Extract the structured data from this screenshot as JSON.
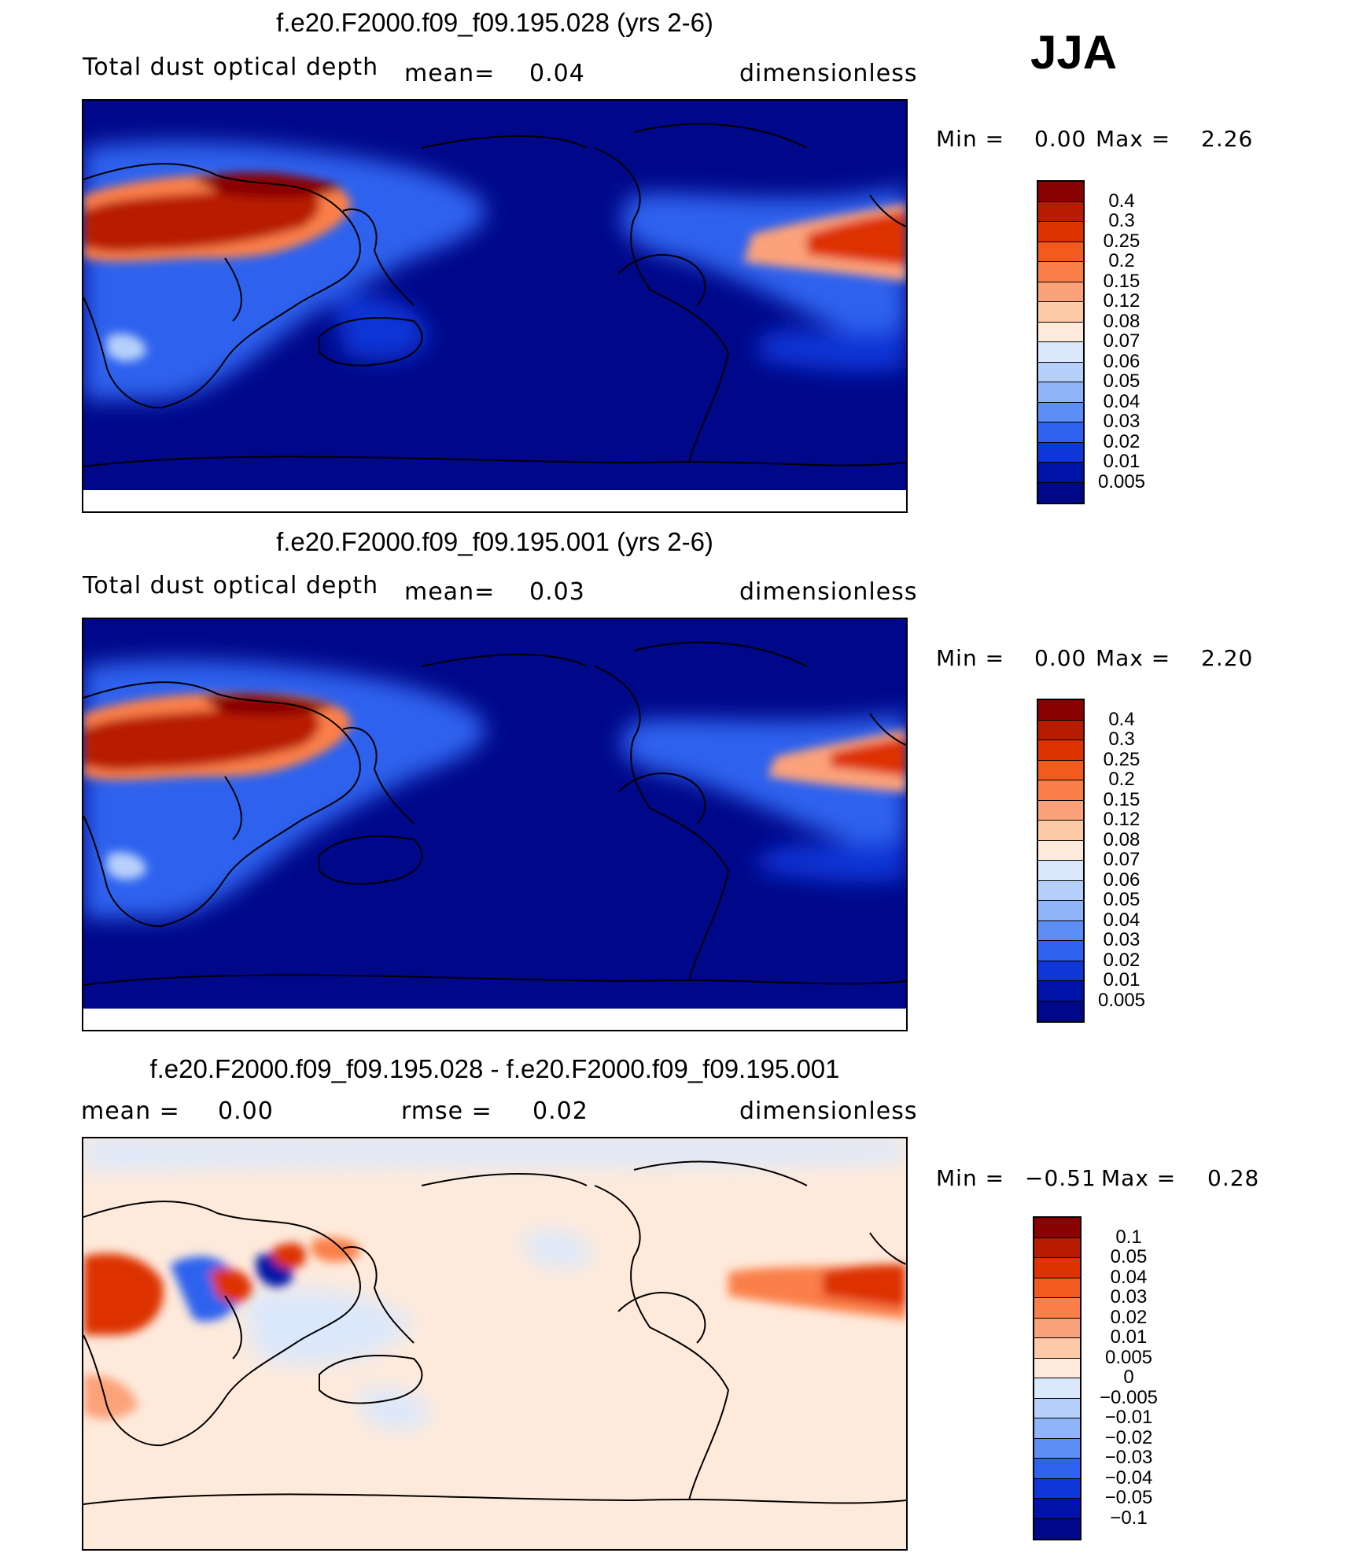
{
  "season": "JJA",
  "panels": [
    {
      "id": "top",
      "title": "f.e20.F2000.f09_f09.195.028 (yrs 2-6)",
      "left_label": "Total dust optical depth",
      "mid_label": "mean=",
      "mid_value": "0.04",
      "right_label": "dimensionless",
      "min_label": "Min =",
      "min_value": "0.00",
      "max_label": "Max =",
      "max_value": "2.26"
    },
    {
      "id": "middle",
      "title": "f.e20.F2000.f09_f09.195.001 (yrs 2-6)",
      "left_label": "Total dust optical depth",
      "mid_label": "mean=",
      "mid_value": "0.03",
      "right_label": "dimensionless",
      "min_label": "Min =",
      "min_value": "0.00",
      "max_label": "Max =",
      "max_value": "2.20"
    },
    {
      "id": "diff",
      "title": "f.e20.F2000.f09_f09.195.028 - f.e20.F2000.f09_f09.195.001",
      "left_label": "mean =",
      "left_value": "0.00",
      "mid_label": "rmse =",
      "mid_value": "0.02",
      "right_label": "dimensionless",
      "min_label": "Min =",
      "min_value": "−0.51",
      "max_label": "Max =",
      "max_value": "0.28"
    }
  ],
  "colorbars": {
    "abs": {
      "labels": [
        "0.4",
        "0.3",
        "0.25",
        "0.2",
        "0.15",
        "0.12",
        "0.08",
        "0.07",
        "0.06",
        "0.05",
        "0.04",
        "0.03",
        "0.02",
        "0.01",
        "0.005"
      ],
      "colors": [
        "#8b0000",
        "#b81c00",
        "#dd3300",
        "#f25a1e",
        "#fa7f48",
        "#fca27a",
        "#fdcaa7",
        "#feeadb",
        "#dbe8fb",
        "#b7d0fb",
        "#8fb4fa",
        "#5d8ef5",
        "#2f62ee",
        "#0f36d6",
        "#0012a8",
        "#00088a"
      ]
    },
    "diff": {
      "labels": [
        "0.1",
        "0.05",
        "0.04",
        "0.03",
        "0.02",
        "0.01",
        "0.005",
        "0",
        "−0.005",
        "−0.01",
        "−0.02",
        "−0.03",
        "−0.04",
        "−0.05",
        "−0.1"
      ],
      "colors": [
        "#8b0000",
        "#b81c00",
        "#dd3300",
        "#f25a1e",
        "#fa7f48",
        "#fca27a",
        "#fdcaa7",
        "#feeadb",
        "#dbe8fb",
        "#b7d0fb",
        "#8fb4fa",
        "#5d8ef5",
        "#2f62ee",
        "#0f36d6",
        "#0012a8",
        "#00088a"
      ]
    }
  },
  "chart_data": [
    {
      "type": "heatmap",
      "title": "f.e20.F2000.f09_f09.195.028 (yrs 2-6)",
      "variable": "Total dust optical depth",
      "units": "dimensionless",
      "mean": 0.04,
      "min": 0.0,
      "max": 2.26,
      "levels": [
        0.005,
        0.01,
        0.02,
        0.03,
        0.04,
        0.05,
        0.06,
        0.07,
        0.08,
        0.12,
        0.15,
        0.2,
        0.25,
        0.3,
        0.4
      ]
    },
    {
      "type": "heatmap",
      "title": "f.e20.F2000.f09_f09.195.001 (yrs 2-6)",
      "variable": "Total dust optical depth",
      "units": "dimensionless",
      "mean": 0.03,
      "min": 0.0,
      "max": 2.2,
      "levels": [
        0.005,
        0.01,
        0.02,
        0.03,
        0.04,
        0.05,
        0.06,
        0.07,
        0.08,
        0.12,
        0.15,
        0.2,
        0.25,
        0.3,
        0.4
      ]
    },
    {
      "type": "heatmap",
      "title": "f.e20.F2000.f09_f09.195.028 - f.e20.F2000.f09_f09.195.001",
      "units": "dimensionless",
      "mean": 0.0,
      "rmse": 0.02,
      "min": -0.51,
      "max": 0.28,
      "levels": [
        -0.1,
        -0.05,
        -0.04,
        -0.03,
        -0.02,
        -0.01,
        -0.005,
        0,
        0.005,
        0.01,
        0.02,
        0.03,
        0.04,
        0.05,
        0.1
      ]
    }
  ]
}
